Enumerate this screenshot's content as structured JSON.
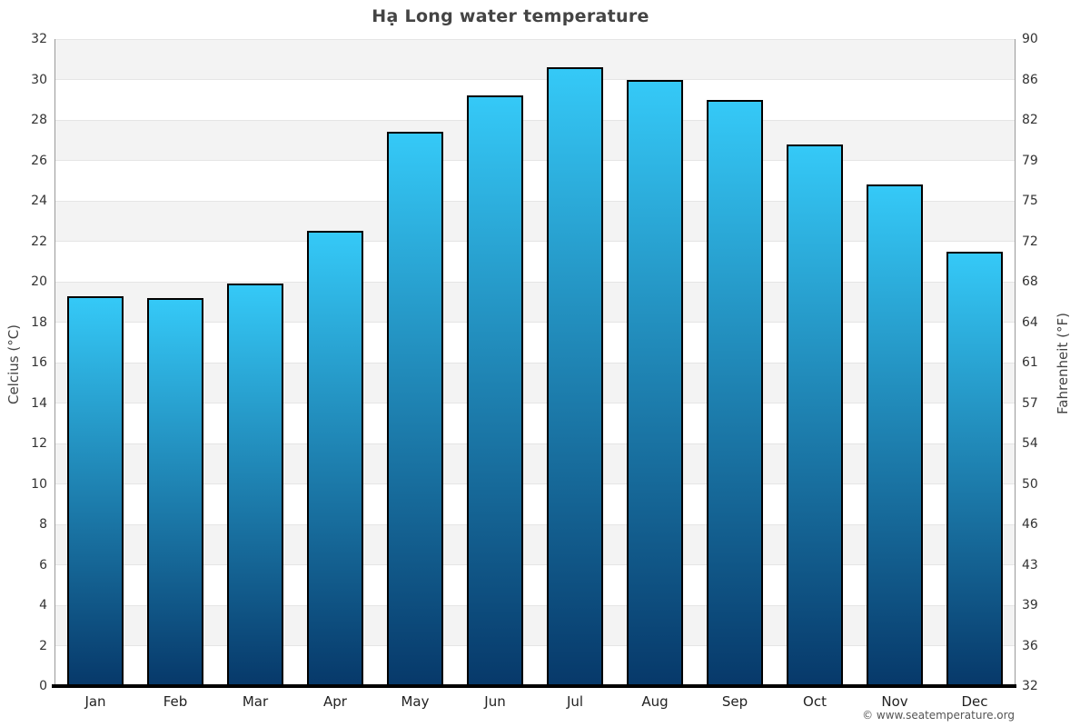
{
  "page": {
    "title": "Hạ Long water temperature"
  },
  "footer": {
    "copyright": "© www.seatemperature.org"
  },
  "chart_data": {
    "type": "bar",
    "title": "Hạ Long water temperature",
    "categories": [
      "Jan",
      "Feb",
      "Mar",
      "Apr",
      "May",
      "Jun",
      "Jul",
      "Aug",
      "Sep",
      "Oct",
      "Nov",
      "Dec"
    ],
    "values_celsius": [
      19.3,
      19.2,
      19.9,
      22.5,
      27.4,
      29.2,
      30.6,
      30.0,
      29.0,
      26.8,
      24.8,
      21.5
    ],
    "ylabel_left": "Celcius (°C)",
    "ylabel_right": "Fahrenheit (°F)",
    "xlabel": "",
    "ylim_celsius": [
      0,
      32
    ],
    "ylim_fahrenheit": [
      32,
      90
    ],
    "yticks_celsius": [
      0,
      2,
      4,
      6,
      8,
      10,
      12,
      14,
      16,
      18,
      20,
      22,
      24,
      26,
      28,
      30,
      32
    ],
    "yticks_fahrenheit": [
      32,
      36,
      39,
      43,
      46,
      50,
      54,
      57,
      61,
      64,
      68,
      72,
      75,
      79,
      82,
      86,
      90
    ],
    "grid": true,
    "legend": "none",
    "colors": {
      "bar_gradient_top": "#35c9f7",
      "bar_gradient_bottom": "#07396a",
      "bar_border": "#000000",
      "band_alt": "#f3f3f3",
      "band_base": "#ffffff",
      "gridline": "#e5e5e5",
      "axis_line": "#999999",
      "baseline": "#000000",
      "title_text": "#444444",
      "tick_text": "#333333",
      "axis_label_text": "#444444",
      "footer_text": "#555555"
    }
  }
}
